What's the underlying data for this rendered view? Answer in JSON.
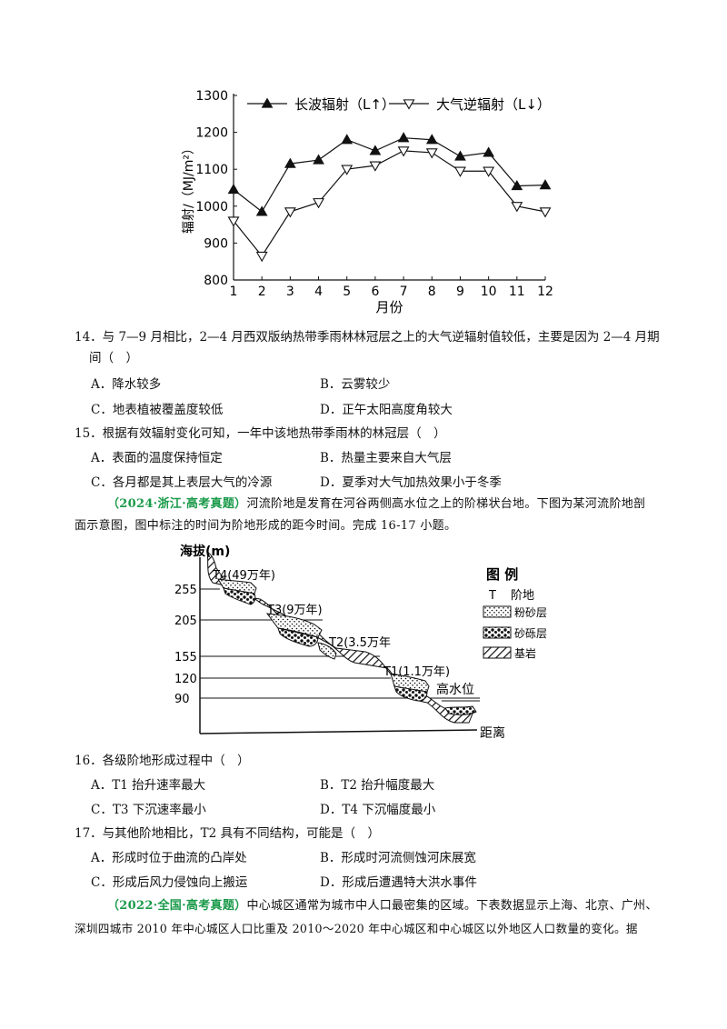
{
  "chart_data": {
    "type": "line",
    "x": [
      1,
      2,
      3,
      4,
      5,
      6,
      7,
      8,
      9,
      10,
      11,
      12
    ],
    "xlabel": "月份",
    "ylabel": "辐射/（MJ/m²）",
    "ylim": [
      800,
      1300
    ],
    "yticks": [
      800,
      900,
      1000,
      1100,
      1200,
      1300
    ],
    "legend_position": "top",
    "series": [
      {
        "name": "长波辐射（L↑）",
        "marker": "filled-triangle-up",
        "values": [
          1045,
          985,
          1115,
          1125,
          1180,
          1150,
          1185,
          1180,
          1135,
          1145,
          1055,
          1057
        ]
      },
      {
        "name": "大气逆辐射（L↓）",
        "marker": "hollow-triangle-down",
        "values": [
          960,
          865,
          985,
          1010,
          1100,
          1110,
          1150,
          1145,
          1095,
          1095,
          1000,
          985
        ]
      }
    ]
  },
  "q14": {
    "stem": "14．与 7—9 月相比，2—4 月西双版纳热带季雨林林冠层之上的大气逆辐射值较低，主要是因为 2—4 月期",
    "stem2": "间（　）",
    "A": "A．降水较多",
    "B": "B．云雾较少",
    "C": "C．地表植被覆盖度较低",
    "D": "D．正午太阳高度角较大"
  },
  "q15": {
    "stem": "15．根据有效辐射变化可知，一年中该地热带季雨林的林冠层（　）",
    "A": "A．表面的温度保持恒定",
    "B": "B．热量主要来自大气层",
    "C": "C．各月都是其上表层大气的冷源",
    "D": "D．夏季对大气加热效果小于冬季"
  },
  "intro1": {
    "source": "（2024·浙江·高考真题）",
    "line1": "河流阶地是发育在河谷两侧高水位之上的阶梯状台地。下图为某河流阶地剖",
    "line2": "面示意图，图中标注的时间为阶地形成的距今时间。完成 16-17 小题。"
  },
  "diagram": {
    "ylabel": "海拔(m)",
    "xlabel": "距离",
    "elevations": [
      "255",
      "205",
      "155",
      "120",
      "90"
    ],
    "terraces": [
      "T4(49万年)",
      "T3(9万年)",
      "T2(3.5万年",
      "T1(1.1万年)"
    ],
    "high_water": "高水位",
    "legend_title": "图  例",
    "legend": {
      "terrace_symbol": "T",
      "terrace": "阶地",
      "silt": "粉砂层",
      "gravel": "砂砾层",
      "bedrock": "基岩"
    }
  },
  "q16": {
    "stem": "16．各级阶地形成过程中（　）",
    "A": "A．T1 抬升速率最大",
    "B": "B．T2 抬升幅度最大",
    "C": "C．T3 下沉速率最小",
    "D": "D．T4 下沉幅度最小"
  },
  "q17": {
    "stem": "17．与其他阶地相比，T2 具有不同结构，可能是（　）",
    "A": "A．形成时位于曲流的凸岸处",
    "B": "B．形成时河流侧蚀河床展宽",
    "C": "C．形成后风力侵蚀向上搬运",
    "D": "D．形成后遭遇特大洪水事件"
  },
  "intro2": {
    "source": "（2022·全国·高考真题）",
    "line1": "中心城区通常为城市中人口最密集的区域。下表数据显示上海、北京、广州、",
    "line2": "深圳四城市 2010 年中心城区人口比重及 2010～2020 年中心城区和中心城区以外地区人口数量的变化。据"
  }
}
